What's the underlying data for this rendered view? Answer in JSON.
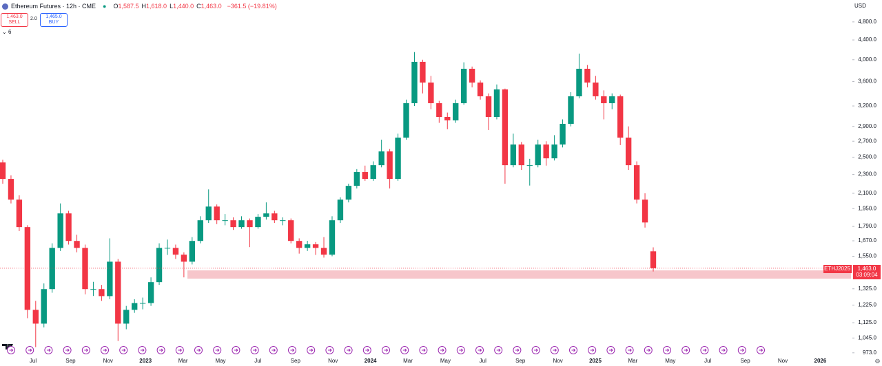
{
  "header": {
    "symbol": "Ethereum Futures · 12h · CME",
    "ohlc": [
      {
        "key": "O",
        "value": "1,587.5"
      },
      {
        "key": "H",
        "value": "1,618.0"
      },
      {
        "key": "L",
        "value": "1,440.0"
      },
      {
        "key": "C",
        "value": "1,463.0"
      }
    ],
    "change": "−361.5 (−19.81%)",
    "sell_price": "1,463.0",
    "sell": "SELL",
    "spread": "2.0",
    "buy_price": "1,465.0",
    "buy": "BUY",
    "indicators": "6",
    "currency": "USD"
  },
  "price_tag": {
    "symbol": "ETHJ2025",
    "price": "1,463.0",
    "countdown": "03:09:04"
  },
  "chart_data": {
    "type": "candlestick",
    "log_scale": true,
    "up_color": "#089981",
    "down_color": "#f23645",
    "ylim": [
      966,
      5335
    ],
    "yticks": [
      {
        "value": 973,
        "label": "973.0"
      },
      {
        "value": 1045,
        "label": "1,045.0"
      },
      {
        "value": 1125,
        "label": "1,125.0"
      },
      {
        "value": 1225,
        "label": "1,225.0"
      },
      {
        "value": 1325,
        "label": "1,325.0"
      },
      {
        "value": 1550,
        "label": "1,550.0"
      },
      {
        "value": 1670,
        "label": "1,670.0"
      },
      {
        "value": 1790,
        "label": "1,790.0"
      },
      {
        "value": 1950,
        "label": "1,950.0"
      },
      {
        "value": 2100,
        "label": "2,100.0"
      },
      {
        "value": 2300,
        "label": "2,300.0"
      },
      {
        "value": 2500,
        "label": "2,500.0"
      },
      {
        "value": 2700,
        "label": "2,700.0"
      },
      {
        "value": 2900,
        "label": "2,900.0"
      },
      {
        "value": 3200,
        "label": "3,200.0"
      },
      {
        "value": 3600,
        "label": "3,600.0"
      },
      {
        "value": 4000,
        "label": "4,000.0"
      },
      {
        "value": 4400,
        "label": "4,400.0"
      },
      {
        "value": 4800,
        "label": "4,800.0"
      }
    ],
    "xlabels": [
      "Jul",
      "Sep",
      "Nov",
      "2023",
      "Mar",
      "May",
      "Jul",
      "Sep",
      "Nov",
      "2024",
      "Mar",
      "May",
      "Jul",
      "Sep",
      "Nov",
      "2025",
      "Mar",
      "May",
      "Jul",
      "Sep",
      "Nov",
      "2026"
    ],
    "candles": [
      {
        "o": 2437,
        "h": 2470,
        "l": 2200,
        "c": 2251
      },
      {
        "o": 2251,
        "h": 2290,
        "l": 2000,
        "c": 2037
      },
      {
        "o": 2037,
        "h": 2080,
        "l": 1750,
        "c": 1784
      },
      {
        "o": 1784,
        "h": 1800,
        "l": 1150,
        "c": 1197
      },
      {
        "o": 1197,
        "h": 1250,
        "l": 1000,
        "c": 1120
      },
      {
        "o": 1120,
        "h": 1360,
        "l": 1100,
        "c": 1323
      },
      {
        "o": 1323,
        "h": 1650,
        "l": 1300,
        "c": 1614
      },
      {
        "o": 1614,
        "h": 2000,
        "l": 1590,
        "c": 1906
      },
      {
        "o": 1906,
        "h": 1930,
        "l": 1640,
        "c": 1669
      },
      {
        "o": 1669,
        "h": 1720,
        "l": 1580,
        "c": 1614
      },
      {
        "o": 1614,
        "h": 1640,
        "l": 1290,
        "c": 1323
      },
      {
        "o": 1323,
        "h": 1370,
        "l": 1280,
        "c": 1323
      },
      {
        "o": 1323,
        "h": 1350,
        "l": 1250,
        "c": 1279
      },
      {
        "o": 1279,
        "h": 1690,
        "l": 1260,
        "c": 1510
      },
      {
        "o": 1510,
        "h": 1530,
        "l": 1030,
        "c": 1120
      },
      {
        "o": 1120,
        "h": 1220,
        "l": 1090,
        "c": 1197
      },
      {
        "o": 1197,
        "h": 1260,
        "l": 1180,
        "c": 1237
      },
      {
        "o": 1237,
        "h": 1270,
        "l": 1200,
        "c": 1237
      },
      {
        "o": 1237,
        "h": 1400,
        "l": 1220,
        "c": 1368
      },
      {
        "o": 1368,
        "h": 1650,
        "l": 1350,
        "c": 1614
      },
      {
        "o": 1614,
        "h": 1680,
        "l": 1560,
        "c": 1614
      },
      {
        "o": 1614,
        "h": 1640,
        "l": 1530,
        "c": 1562
      },
      {
        "o": 1562,
        "h": 1580,
        "l": 1400,
        "c": 1510
      },
      {
        "o": 1510,
        "h": 1700,
        "l": 1490,
        "c": 1669
      },
      {
        "o": 1669,
        "h": 1880,
        "l": 1650,
        "c": 1844
      },
      {
        "o": 1844,
        "h": 2140,
        "l": 1820,
        "c": 1970
      },
      {
        "o": 1970,
        "h": 1990,
        "l": 1810,
        "c": 1844
      },
      {
        "o": 1844,
        "h": 1900,
        "l": 1800,
        "c": 1844
      },
      {
        "o": 1844,
        "h": 1870,
        "l": 1760,
        "c": 1784
      },
      {
        "o": 1784,
        "h": 1880,
        "l": 1770,
        "c": 1844
      },
      {
        "o": 1844,
        "h": 1860,
        "l": 1620,
        "c": 1784
      },
      {
        "o": 1784,
        "h": 1900,
        "l": 1770,
        "c": 1875
      },
      {
        "o": 1875,
        "h": 2010,
        "l": 1850,
        "c": 1906
      },
      {
        "o": 1906,
        "h": 1930,
        "l": 1820,
        "c": 1844
      },
      {
        "o": 1844,
        "h": 1870,
        "l": 1800,
        "c": 1844
      },
      {
        "o": 1844,
        "h": 1860,
        "l": 1650,
        "c": 1669
      },
      {
        "o": 1669,
        "h": 1690,
        "l": 1570,
        "c": 1614
      },
      {
        "o": 1614,
        "h": 1670,
        "l": 1590,
        "c": 1642
      },
      {
        "o": 1642,
        "h": 1660,
        "l": 1560,
        "c": 1614
      },
      {
        "o": 1614,
        "h": 1700,
        "l": 1540,
        "c": 1562
      },
      {
        "o": 1562,
        "h": 1880,
        "l": 1550,
        "c": 1844
      },
      {
        "o": 1844,
        "h": 2060,
        "l": 1820,
        "c": 2037
      },
      {
        "o": 2037,
        "h": 2200,
        "l": 2010,
        "c": 2177
      },
      {
        "o": 2177,
        "h": 2360,
        "l": 2150,
        "c": 2327
      },
      {
        "o": 2327,
        "h": 2400,
        "l": 2230,
        "c": 2251
      },
      {
        "o": 2251,
        "h": 2450,
        "l": 2230,
        "c": 2405
      },
      {
        "o": 2405,
        "h": 2720,
        "l": 2380,
        "c": 2570
      },
      {
        "o": 2570,
        "h": 2600,
        "l": 2150,
        "c": 2251
      },
      {
        "o": 2251,
        "h": 2800,
        "l": 2230,
        "c": 2747
      },
      {
        "o": 2747,
        "h": 3300,
        "l": 2720,
        "c": 3243
      },
      {
        "o": 3243,
        "h": 4150,
        "l": 3200,
        "c": 3959
      },
      {
        "o": 3959,
        "h": 4000,
        "l": 3400,
        "c": 3583
      },
      {
        "o": 3583,
        "h": 3700,
        "l": 3150,
        "c": 3243
      },
      {
        "o": 3243,
        "h": 3280,
        "l": 2950,
        "c": 3035
      },
      {
        "o": 3035,
        "h": 3100,
        "l": 2860,
        "c": 2985
      },
      {
        "o": 2985,
        "h": 3300,
        "l": 2950,
        "c": 3243
      },
      {
        "o": 3243,
        "h": 3950,
        "l": 3220,
        "c": 3829
      },
      {
        "o": 3829,
        "h": 3870,
        "l": 3500,
        "c": 3583
      },
      {
        "o": 3583,
        "h": 3620,
        "l": 3300,
        "c": 3353
      },
      {
        "o": 3353,
        "h": 3400,
        "l": 2850,
        "c": 3035
      },
      {
        "o": 3035,
        "h": 3550,
        "l": 3000,
        "c": 3466
      },
      {
        "o": 3466,
        "h": 3480,
        "l": 2200,
        "c": 2405
      },
      {
        "o": 2405,
        "h": 2800,
        "l": 2380,
        "c": 2657
      },
      {
        "o": 2657,
        "h": 2690,
        "l": 2350,
        "c": 2405
      },
      {
        "o": 2405,
        "h": 2480,
        "l": 2180,
        "c": 2405
      },
      {
        "o": 2405,
        "h": 2720,
        "l": 2380,
        "c": 2657
      },
      {
        "o": 2657,
        "h": 2700,
        "l": 2400,
        "c": 2486
      },
      {
        "o": 2486,
        "h": 2780,
        "l": 2460,
        "c": 2657
      },
      {
        "o": 2657,
        "h": 3000,
        "l": 2620,
        "c": 2936
      },
      {
        "o": 2936,
        "h": 3420,
        "l": 2900,
        "c": 3353
      },
      {
        "o": 3353,
        "h": 4120,
        "l": 3320,
        "c": 3829
      },
      {
        "o": 3829,
        "h": 3900,
        "l": 3500,
        "c": 3583
      },
      {
        "o": 3583,
        "h": 3700,
        "l": 3300,
        "c": 3353
      },
      {
        "o": 3353,
        "h": 3450,
        "l": 3000,
        "c": 3243
      },
      {
        "o": 3243,
        "h": 3400,
        "l": 3150,
        "c": 3353
      },
      {
        "o": 3353,
        "h": 3380,
        "l": 2650,
        "c": 2747
      },
      {
        "o": 2747,
        "h": 2900,
        "l": 2350,
        "c": 2405
      },
      {
        "o": 2405,
        "h": 2450,
        "l": 2000,
        "c": 2037
      },
      {
        "o": 2037,
        "h": 2100,
        "l": 1780,
        "c": 1824.5
      },
      {
        "o": 1587.5,
        "h": 1618,
        "l": 1440,
        "c": 1463
      }
    ]
  }
}
